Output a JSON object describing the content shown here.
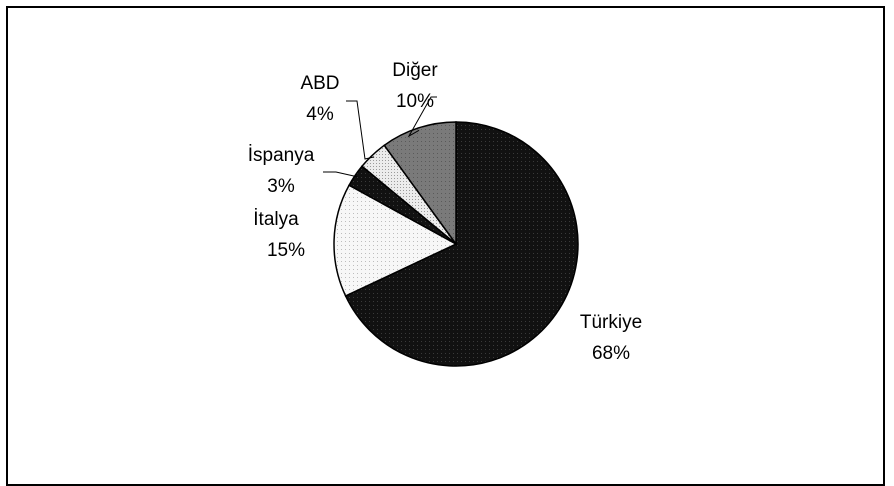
{
  "chart_data": {
    "type": "pie",
    "title": "",
    "categories": [
      "Türkiye",
      "İtalya",
      "İspanya",
      "ABD",
      "Diğer"
    ],
    "values": [
      68,
      15,
      3,
      4,
      10
    ],
    "labels": [
      {
        "name": "Türkiye",
        "value": "68%"
      },
      {
        "name": "İtalya",
        "value": "15%"
      },
      {
        "name": "İspanya",
        "value": "3%"
      },
      {
        "name": "ABD",
        "value": "4%"
      },
      {
        "name": "Diğer",
        "value": "10%"
      }
    ],
    "slice_colors": [
      "#111111",
      "#f2f2f2",
      "#2b2b2b",
      "#e6e6e6",
      "#7a7a7a"
    ],
    "legend": "none",
    "start_angle": "12 o'clock",
    "direction": "clockwise"
  }
}
